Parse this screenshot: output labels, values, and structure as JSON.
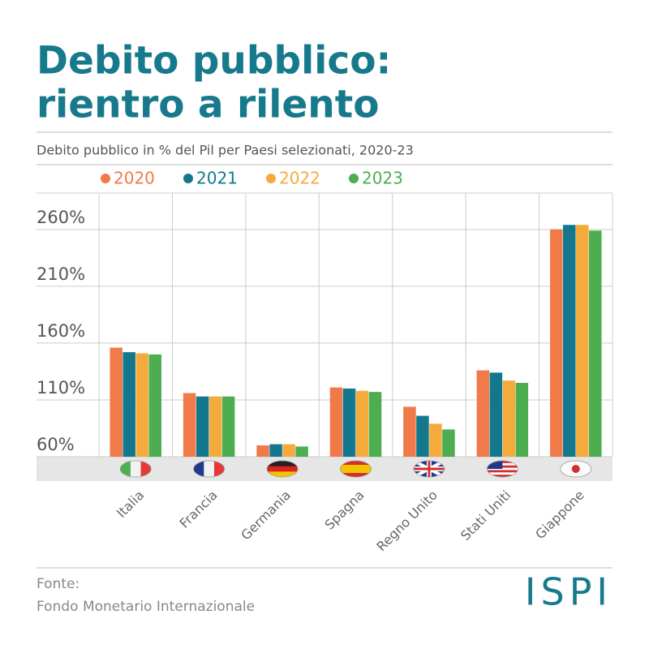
{
  "chart_data": {
    "type": "bar",
    "title": "Debito pubblico:",
    "title_line2": "rientro a rilento",
    "subtitle": "Debito pubblico in % del Pil per Paesi selezionati, 2020-23",
    "categories": [
      "Italia",
      "Francia",
      "Germania",
      "Spagna",
      "Regno Unito",
      "Stati Uniti",
      "Giappone"
    ],
    "series": [
      {
        "name": "2020",
        "color": "#f07a4a",
        "values": [
          156,
          116,
          70,
          121,
          104,
          136,
          260
        ]
      },
      {
        "name": "2021",
        "color": "#13788e",
        "values": [
          152,
          113,
          71,
          120,
          96,
          134,
          264
        ]
      },
      {
        "name": "2022",
        "color": "#f5ab3c",
        "values": [
          151,
          113,
          71,
          118,
          89,
          127,
          264
        ]
      },
      {
        "name": "2023",
        "color": "#4cae50",
        "values": [
          150,
          113,
          69,
          117,
          84,
          125,
          259
        ]
      }
    ],
    "ylim": [
      60,
      292
    ],
    "yticks": [
      {
        "value": 60,
        "label": "60%"
      },
      {
        "value": 110,
        "label": "110%"
      },
      {
        "value": 160,
        "label": "160%"
      },
      {
        "value": 210,
        "label": "210%"
      },
      {
        "value": 260,
        "label": "260%"
      }
    ],
    "grid": true,
    "legend": "top",
    "source_label": "Fonte:",
    "source": "Fondo Monetario Internazionale",
    "logo": "ISPI"
  }
}
